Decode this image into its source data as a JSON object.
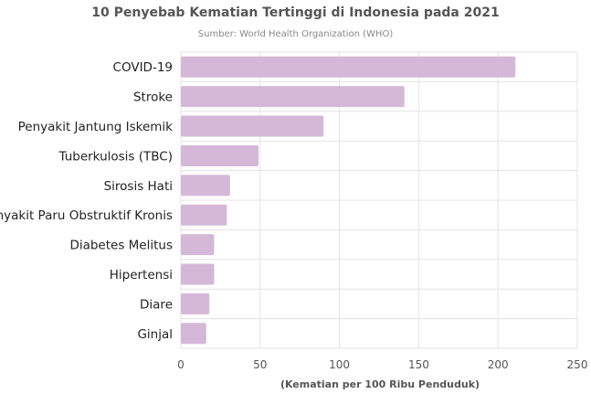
{
  "chart_data": {
    "type": "bar",
    "orientation": "horizontal",
    "title": "10 Penyebab Kematian Tertinggi di Indonesia pada 2021",
    "subtitle": "Sumber: World Health Organization (WHO)",
    "xlabel": "(Kematian per 100 Ribu Penduduk)",
    "ylabel": "",
    "categories": [
      "COVID-19",
      "Stroke",
      "Penyakit Jantung Iskemik",
      "Tuberkulosis (TBC)",
      "Sirosis Hati",
      "Penyakit Paru Obstruktif Kronis",
      "Diabetes Melitus",
      "Hipertensi",
      "Diare",
      "Ginjal"
    ],
    "values": [
      211,
      141,
      90,
      49,
      31,
      29,
      21,
      21,
      18,
      16
    ],
    "xlim": [
      0,
      250
    ],
    "xticks": [
      0,
      50,
      100,
      150,
      200,
      250
    ],
    "grid": true,
    "bar_color": "#d5b8d8"
  }
}
